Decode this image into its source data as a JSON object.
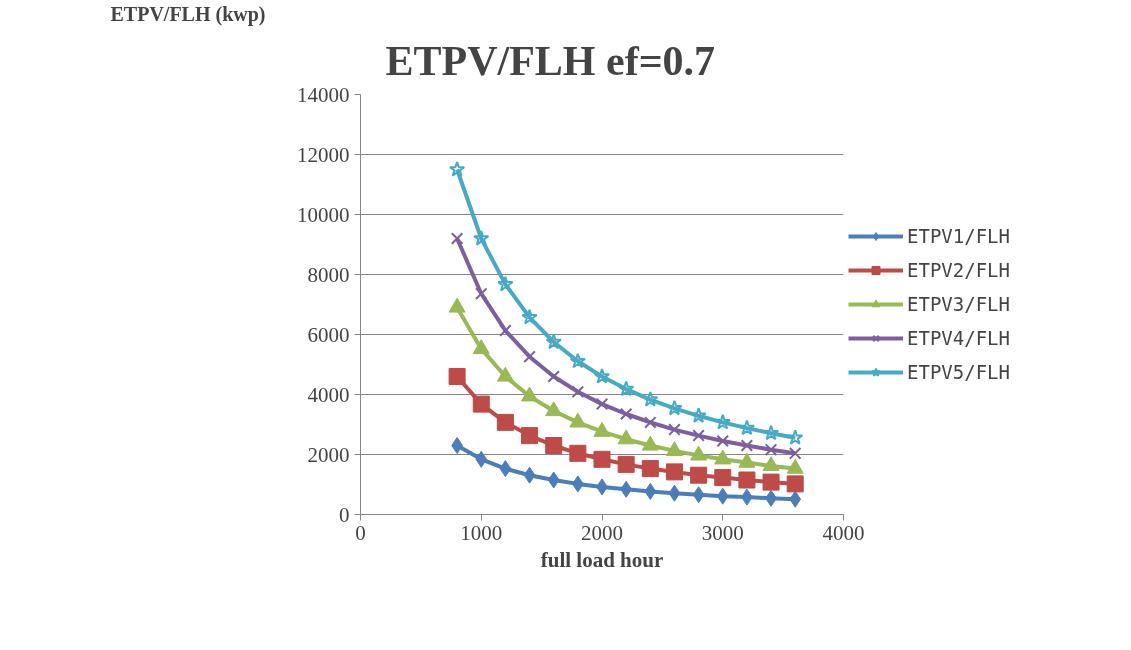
{
  "chart_data": {
    "type": "line",
    "title": "ETPV/FLH ef=0.7",
    "ylabel": "ETPV/FLH (kwp)",
    "xlabel": "full load hour",
    "x": [
      800,
      1000,
      1200,
      1400,
      1600,
      1800,
      2000,
      2200,
      2400,
      2600,
      2800,
      3000,
      3200,
      3400,
      3600
    ],
    "xlim": [
      0,
      4000
    ],
    "xticks": [
      0,
      1000,
      2000,
      3000,
      4000
    ],
    "ylim": [
      0,
      14000
    ],
    "yticks": [
      0,
      2000,
      4000,
      6000,
      8000,
      10000,
      12000,
      14000
    ],
    "grid": "y",
    "legend": "right",
    "series": [
      {
        "name": "ETPV1/FLH",
        "color": "#4a7ebb",
        "marker": "diamond",
        "values": [
          2300,
          1840,
          1530,
          1310,
          1150,
          1020,
          920,
          840,
          770,
          710,
          660,
          610,
          580,
          540,
          510
        ]
      },
      {
        "name": "ETPV2/FLH",
        "color": "#be4b48",
        "marker": "square",
        "values": [
          4600,
          3680,
          3070,
          2630,
          2300,
          2040,
          1840,
          1670,
          1530,
          1420,
          1310,
          1230,
          1150,
          1080,
          1020
        ]
      },
      {
        "name": "ETPV3/FLH",
        "color": "#98b954",
        "marker": "triangle",
        "values": [
          6900,
          5520,
          4600,
          3940,
          3450,
          3070,
          2760,
          2510,
          2300,
          2120,
          1970,
          1840,
          1730,
          1620,
          1530
        ]
      },
      {
        "name": "ETPV4/FLH",
        "color": "#7d5fa0",
        "marker": "cross",
        "values": [
          9200,
          7360,
          6130,
          5260,
          4600,
          4090,
          3680,
          3350,
          3070,
          2830,
          2630,
          2450,
          2300,
          2160,
          2040
        ]
      },
      {
        "name": "ETPV5/FLH",
        "color": "#46aac5",
        "marker": "star",
        "values": [
          11500,
          9200,
          7670,
          6570,
          5750,
          5110,
          4600,
          4180,
          3830,
          3540,
          3290,
          3070,
          2880,
          2710,
          2560
        ]
      }
    ]
  }
}
